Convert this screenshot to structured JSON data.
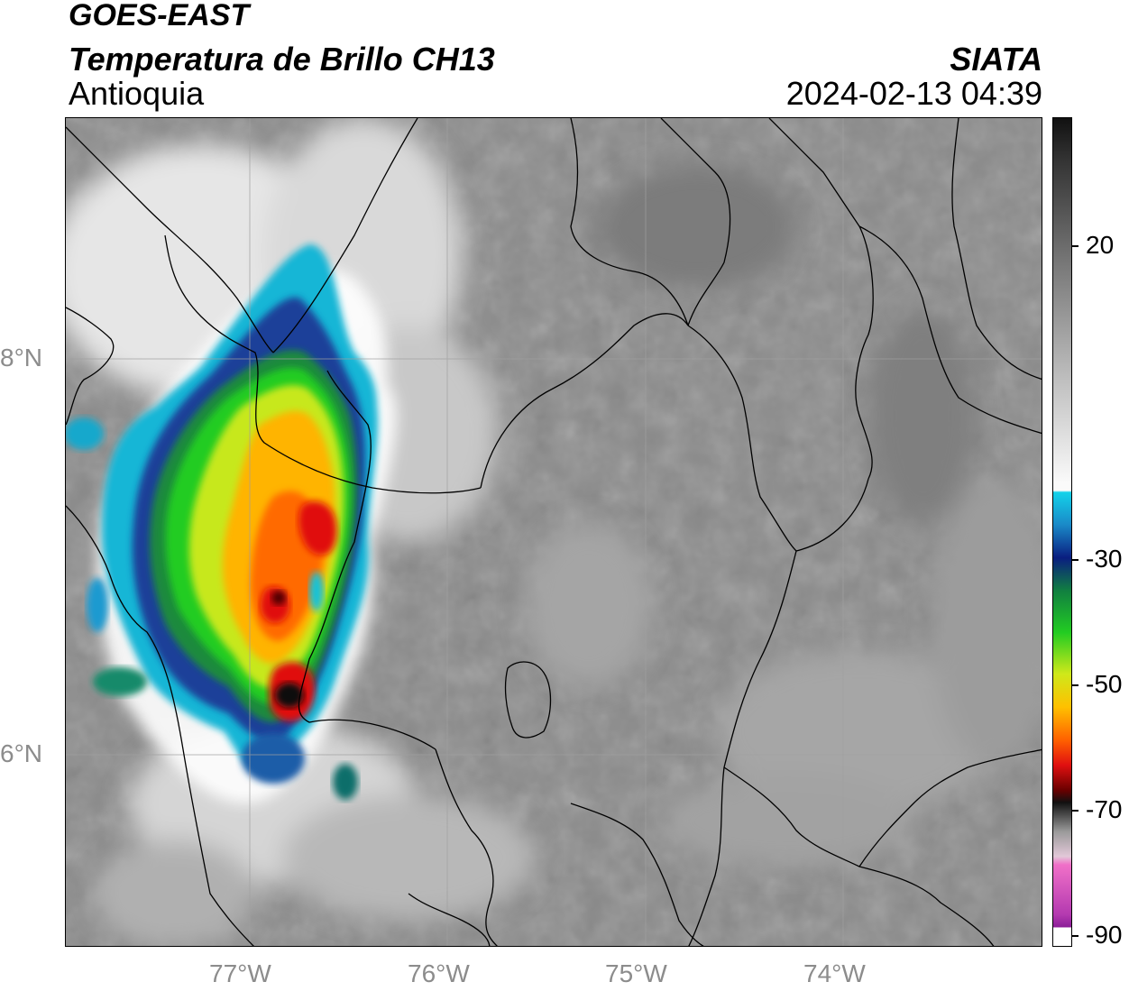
{
  "header": {
    "satellite": "GOES-EAST",
    "product": "Temperatura de Brillo CH13",
    "region": "Antioquia",
    "organization": "SIATA",
    "timestamp": "2024-02-13 04:39"
  },
  "map": {
    "lon_ticks": [
      "77°W",
      "76°W",
      "75°W",
      "74°W"
    ],
    "lat_ticks": [
      "8°N",
      "6°N"
    ],
    "colors": {
      "background_gray": "#8a8a8a",
      "border_lines": "#000000",
      "grid": "#a0a0a0"
    }
  },
  "colorbar": {
    "labels": [
      "20",
      "-30",
      "-50",
      "-70",
      "-90"
    ]
  }
}
